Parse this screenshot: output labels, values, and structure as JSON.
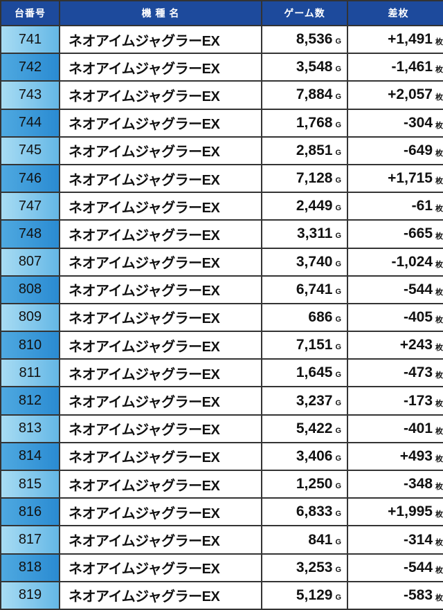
{
  "headers": {
    "number": "台番号",
    "name": "機 種 名",
    "games": "ゲーム数",
    "diff": "差枚"
  },
  "units": {
    "games": "G",
    "diff": "枚"
  },
  "rows": [
    {
      "number": "741",
      "name": "ネオアイムジャグラーEX",
      "games": "8,536",
      "diff": "+1,491"
    },
    {
      "number": "742",
      "name": "ネオアイムジャグラーEX",
      "games": "3,548",
      "diff": "-1,461"
    },
    {
      "number": "743",
      "name": "ネオアイムジャグラーEX",
      "games": "7,884",
      "diff": "+2,057"
    },
    {
      "number": "744",
      "name": "ネオアイムジャグラーEX",
      "games": "1,768",
      "diff": "-304"
    },
    {
      "number": "745",
      "name": "ネオアイムジャグラーEX",
      "games": "2,851",
      "diff": "-649"
    },
    {
      "number": "746",
      "name": "ネオアイムジャグラーEX",
      "games": "7,128",
      "diff": "+1,715"
    },
    {
      "number": "747",
      "name": "ネオアイムジャグラーEX",
      "games": "2,449",
      "diff": "-61"
    },
    {
      "number": "748",
      "name": "ネオアイムジャグラーEX",
      "games": "3,311",
      "diff": "-665"
    },
    {
      "number": "807",
      "name": "ネオアイムジャグラーEX",
      "games": "3,740",
      "diff": "-1,024"
    },
    {
      "number": "808",
      "name": "ネオアイムジャグラーEX",
      "games": "6,741",
      "diff": "-544"
    },
    {
      "number": "809",
      "name": "ネオアイムジャグラーEX",
      "games": "686",
      "diff": "-405"
    },
    {
      "number": "810",
      "name": "ネオアイムジャグラーEX",
      "games": "7,151",
      "diff": "+243"
    },
    {
      "number": "811",
      "name": "ネオアイムジャグラーEX",
      "games": "1,645",
      "diff": "-473"
    },
    {
      "number": "812",
      "name": "ネオアイムジャグラーEX",
      "games": "3,237",
      "diff": "-173"
    },
    {
      "number": "813",
      "name": "ネオアイムジャグラーEX",
      "games": "5,422",
      "diff": "-401"
    },
    {
      "number": "814",
      "name": "ネオアイムジャグラーEX",
      "games": "3,406",
      "diff": "+493"
    },
    {
      "number": "815",
      "name": "ネオアイムジャグラーEX",
      "games": "1,250",
      "diff": "-348"
    },
    {
      "number": "816",
      "name": "ネオアイムジャグラーEX",
      "games": "6,833",
      "diff": "+1,995"
    },
    {
      "number": "817",
      "name": "ネオアイムジャグラーEX",
      "games": "841",
      "diff": "-314"
    },
    {
      "number": "818",
      "name": "ネオアイムジャグラーEX",
      "games": "3,253",
      "diff": "-544"
    },
    {
      "number": "819",
      "name": "ネオアイムジャグラーEX",
      "games": "5,129",
      "diff": "-583"
    }
  ],
  "colors": {
    "header_bg": "#1d4a9c",
    "number_cell_light": "#a8dcf3",
    "number_cell_dark": "#2a8bd2"
  }
}
